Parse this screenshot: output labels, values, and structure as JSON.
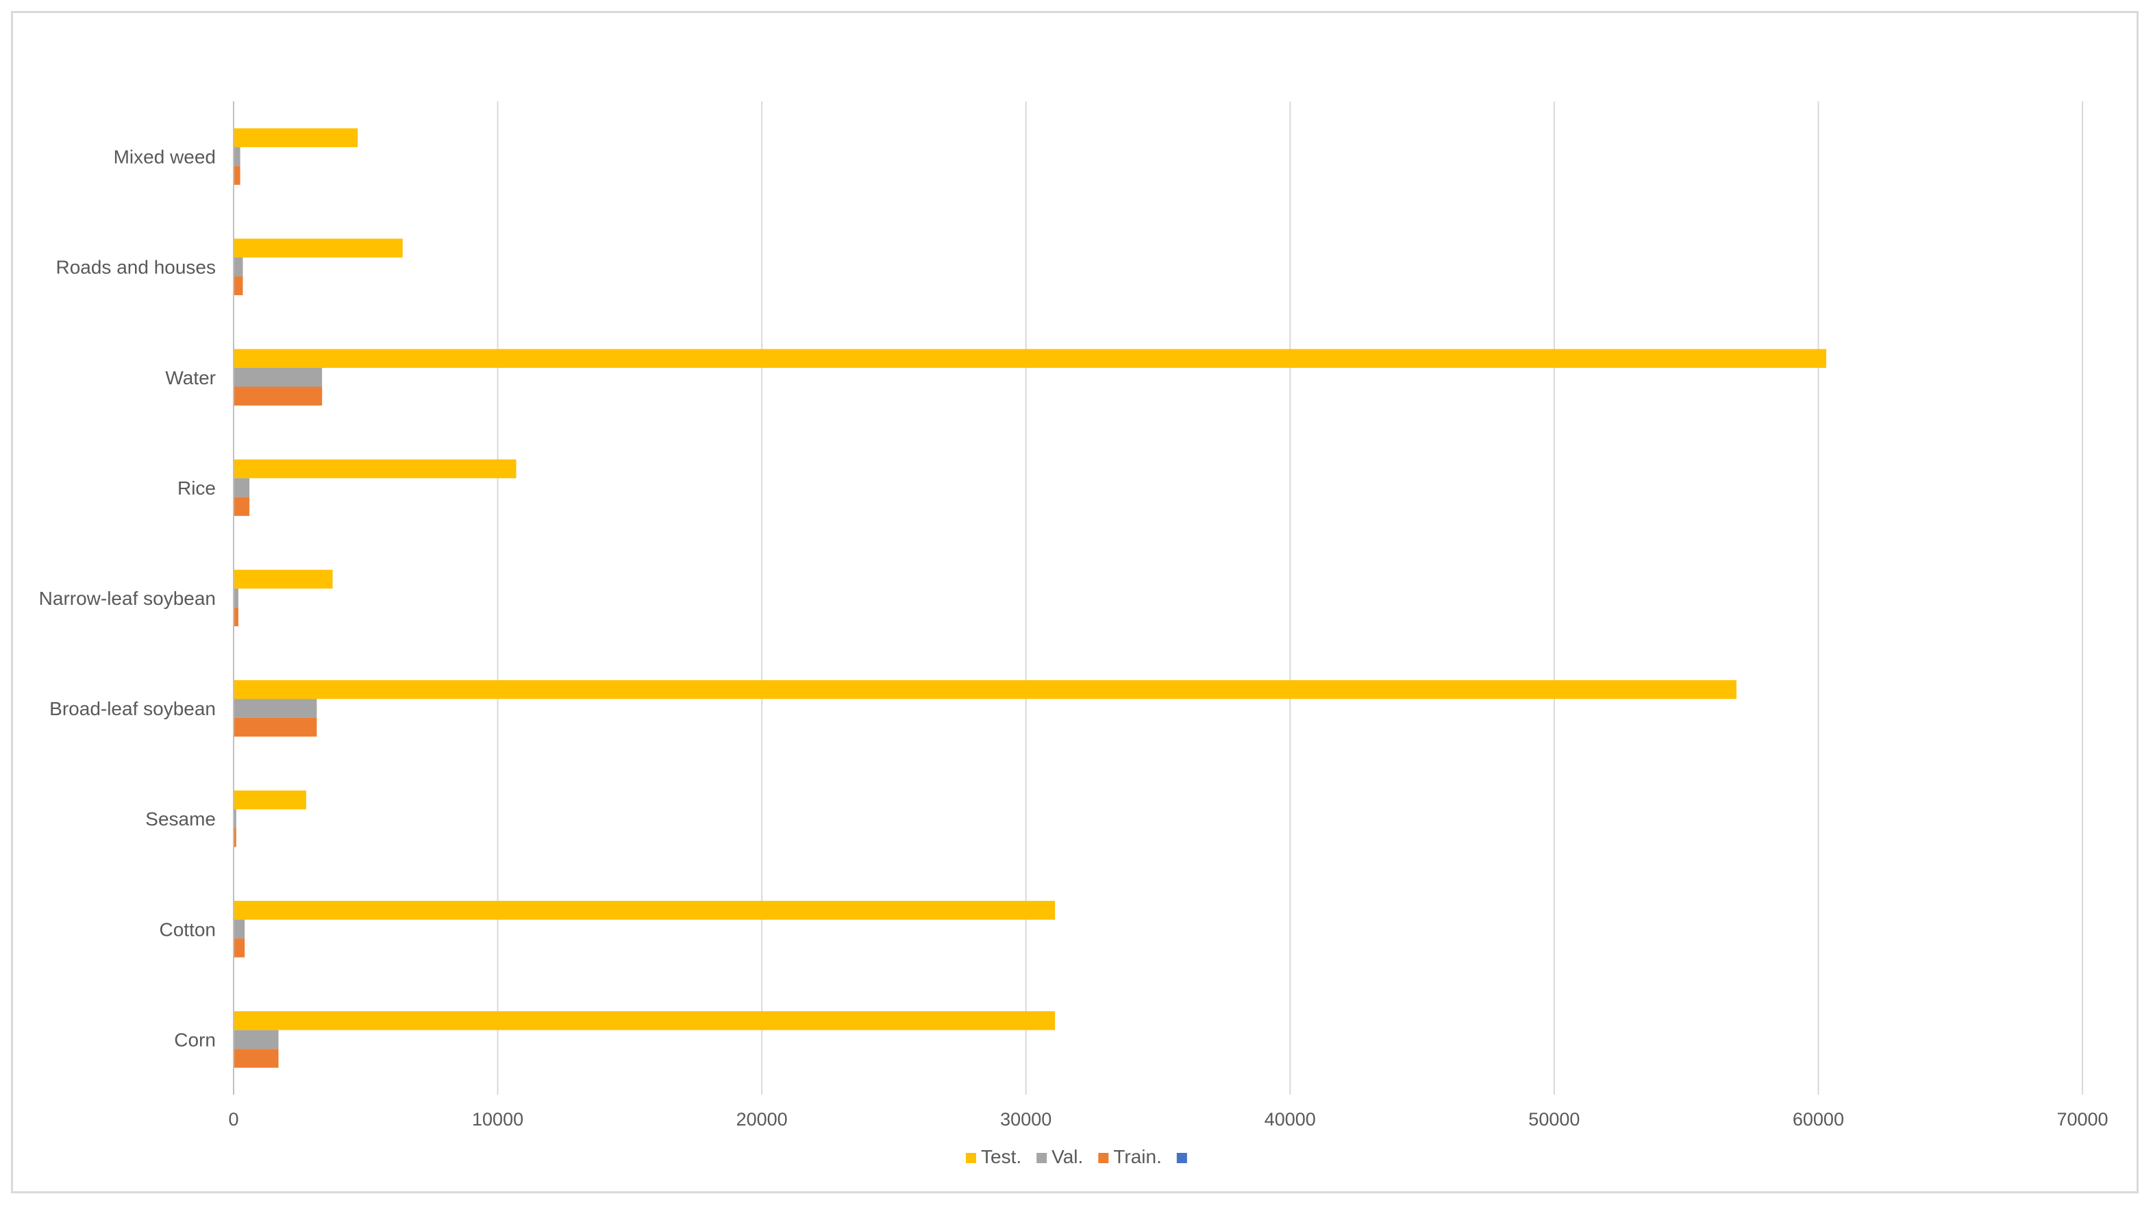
{
  "chart_data": {
    "type": "bar",
    "orientation": "horizontal",
    "title": "",
    "xlabel": "",
    "ylabel": "",
    "xlim": [
      0,
      70000
    ],
    "x_ticks": [
      "0",
      "10000",
      "20000",
      "30000",
      "40000",
      "50000",
      "60000",
      "70000"
    ],
    "grid": true,
    "legend_position": "bottom",
    "categories": [
      "Corn",
      "Cotton",
      "Sesame",
      "Broad-leaf soybean",
      "Narrow-leaf soybean",
      "Rice",
      "Water",
      "Roads and houses",
      "Mixed weed"
    ],
    "series": [
      {
        "name": "Test.",
        "color": "#ffc000",
        "values": [
          31100,
          31100,
          2750,
          56900,
          3750,
          10700,
          60300,
          6400,
          4700
        ]
      },
      {
        "name": "Val.",
        "color": "#a5a5a5",
        "values": [
          1700,
          420,
          100,
          3150,
          180,
          600,
          3350,
          350,
          250
        ]
      },
      {
        "name": "Train.",
        "color": "#ed7d31",
        "values": [
          1700,
          420,
          100,
          3150,
          180,
          600,
          3350,
          350,
          250
        ]
      },
      {
        "name": "",
        "color": "#4472c4",
        "values": [
          0,
          0,
          0,
          0,
          0,
          0,
          0,
          0,
          0
        ]
      }
    ]
  }
}
